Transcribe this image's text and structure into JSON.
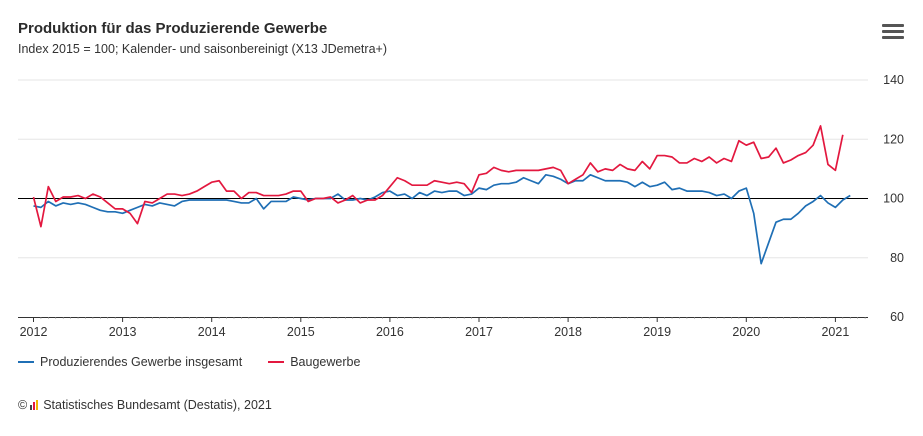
{
  "header": {
    "title": "Produktion für das Produzierende Gewerbe",
    "subtitle": "Index 2015 = 100; Kalender- und saisonbereinigt (X13 JDemetra+)",
    "menu_icon": "hamburger-menu-icon"
  },
  "legend": {
    "items": [
      {
        "label": "Produzierendes Gewerbe insgesamt",
        "color": "#1f6fb5"
      },
      {
        "label": "Baugewerbe",
        "color": "#e3183f"
      }
    ]
  },
  "footer": {
    "copyright_symbol": "©",
    "logo_icon": "destatis-logo-icon",
    "text": "Statistisches Bundesamt (Destatis), 2021"
  },
  "chart_data": {
    "type": "line",
    "title": "Produktion für das Produzierende Gewerbe",
    "subtitle": "Index 2015 = 100; Kalender- und saisonbereinigt (X13 JDemetra+)",
    "x_start": "2012-01",
    "x_end": "2021-03",
    "x_ticks": [
      "2012",
      "2013",
      "2014",
      "2015",
      "2016",
      "2017",
      "2018",
      "2019",
      "2020",
      "2021"
    ],
    "ylim": [
      60,
      140
    ],
    "y_ticks": [
      60,
      80,
      100,
      120,
      140
    ],
    "reference_line": 100,
    "grid": "horizontal",
    "y_axis_position": "right",
    "legend_position": "bottom-left",
    "series": [
      {
        "name": "Produzierendes Gewerbe insgesamt",
        "color": "#1f6fb5",
        "values": [
          97.5,
          97.0,
          99.0,
          97.5,
          98.5,
          98.0,
          98.5,
          98.0,
          97.0,
          96.0,
          95.5,
          95.5,
          95.0,
          96.0,
          97.0,
          98.0,
          97.5,
          98.5,
          98.0,
          97.5,
          99.0,
          99.5,
          99.5,
          99.5,
          99.5,
          99.5,
          99.5,
          99.0,
          98.5,
          98.5,
          100.0,
          96.5,
          99.0,
          99.0,
          99.0,
          100.5,
          100.0,
          99.5,
          100.0,
          100.0,
          100.0,
          101.5,
          99.5,
          99.5,
          100.0,
          99.5,
          100.5,
          102.0,
          102.5,
          101.0,
          101.5,
          100.0,
          102.0,
          101.0,
          102.5,
          102.0,
          102.5,
          102.5,
          101.0,
          101.5,
          103.5,
          103.0,
          104.5,
          105.0,
          105.0,
          105.5,
          107.0,
          106.0,
          105.0,
          108.0,
          107.5,
          106.5,
          105.0,
          106.0,
          106.0,
          108.0,
          107.0,
          106.0,
          106.0,
          106.0,
          105.5,
          104.0,
          105.5,
          104.0,
          104.5,
          105.5,
          103.0,
          103.5,
          102.5,
          102.5,
          102.5,
          102.0,
          101.0,
          101.5,
          100.0,
          102.5,
          103.5,
          95.0,
          78.0,
          85.0,
          92.0,
          93.0,
          93.0,
          95.0,
          97.5,
          99.0,
          101.0,
          98.5,
          97.0,
          99.5,
          101.0
        ]
      },
      {
        "name": "Baugewerbe",
        "color": "#e3183f",
        "values": [
          100.5,
          90.5,
          104.0,
          99.0,
          100.5,
          100.5,
          101.0,
          100.0,
          101.5,
          100.5,
          98.5,
          96.5,
          96.5,
          95.0,
          91.5,
          99.0,
          98.5,
          100.0,
          101.5,
          101.5,
          101.0,
          101.5,
          102.5,
          104.0,
          105.5,
          106.0,
          102.5,
          102.5,
          100.0,
          102.0,
          102.0,
          101.0,
          101.0,
          101.0,
          101.5,
          102.5,
          102.5,
          99.0,
          100.0,
          100.0,
          100.5,
          98.5,
          99.5,
          101.0,
          98.5,
          99.5,
          99.5,
          101.0,
          104.0,
          107.0,
          106.0,
          104.5,
          104.5,
          104.5,
          106.0,
          105.5,
          105.0,
          105.5,
          105.0,
          102.0,
          108.0,
          108.5,
          110.5,
          109.5,
          109.0,
          109.5,
          109.5,
          109.5,
          109.5,
          110.0,
          110.5,
          109.5,
          105.0,
          106.5,
          108.0,
          112.0,
          109.0,
          110.0,
          109.5,
          111.5,
          110.0,
          109.5,
          112.5,
          110.0,
          114.5,
          114.5,
          114.0,
          112.0,
          112.0,
          113.5,
          112.5,
          114.0,
          112.0,
          113.5,
          112.5,
          119.5,
          118.0,
          119.0,
          113.5,
          114.0,
          117.0,
          112.0,
          113.0,
          114.5,
          115.5,
          118.0,
          124.5,
          111.5,
          109.5,
          121.5,
          null
        ]
      }
    ]
  }
}
